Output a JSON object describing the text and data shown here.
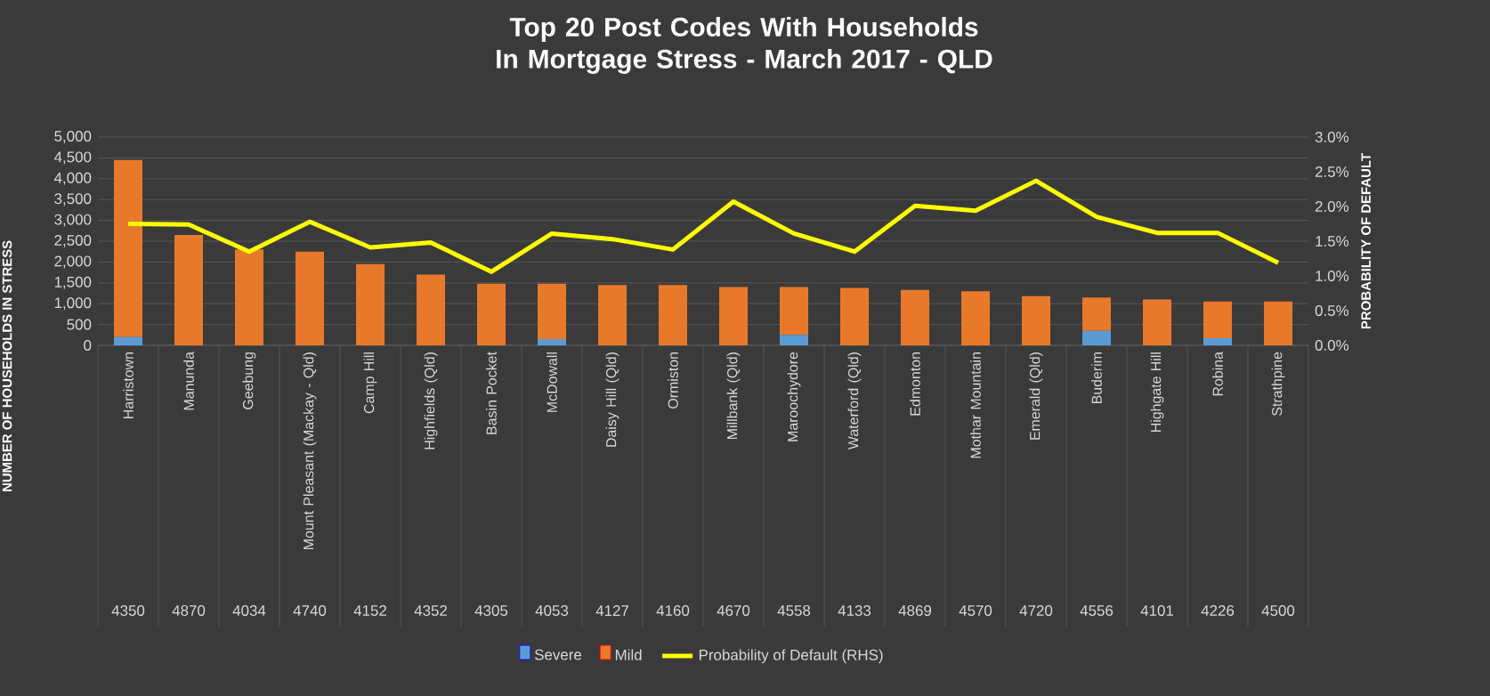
{
  "chart_data": {
    "type": "bar",
    "title": "Top 20 Post Codes With Households In Mortgage Stress - March 2017 - QLD",
    "categories": [
      "Harristown",
      "Manunda",
      "Geebung",
      "Mount Pleasant (Mackay - Qld)",
      "Camp Hill",
      "Highfields (Qld)",
      "Basin Pocket",
      "McDowall",
      "Daisy Hill (Qld)",
      "Ormiston",
      "Millbank (Qld)",
      "Maroochydore",
      "Waterford (Qld)",
      "Edmonton",
      "Mothar Mountain",
      "Emerald (Qld)",
      "Buderim",
      "Highgate Hill",
      "Robina",
      "Strathpine"
    ],
    "annotations": [
      "4350",
      "4870",
      "4034",
      "4740",
      "4152",
      "4352",
      "4305",
      "4053",
      "4127",
      "4160",
      "4670",
      "4558",
      "4133",
      "4869",
      "4570",
      "4720",
      "4556",
      "4101",
      "4226",
      "4500"
    ],
    "stacked": true,
    "series": [
      {
        "name": "Severe",
        "color": "#5b9bd5",
        "values": [
          200,
          0,
          0,
          0,
          0,
          0,
          0,
          150,
          0,
          0,
          0,
          250,
          0,
          0,
          0,
          0,
          350,
          0,
          170,
          0
        ]
      },
      {
        "name": "Mild",
        "color": "#e8792b",
        "values": [
          4250,
          2650,
          2300,
          2250,
          1950,
          1700,
          1480,
          1330,
          1450,
          1450,
          1400,
          1150,
          1380,
          1330,
          1300,
          1180,
          800,
          1100,
          880,
          1050
        ]
      },
      {
        "name": "Probability of Default (RHS)",
        "type": "line",
        "axis": "y2",
        "color": "#ffff00",
        "marker": "none",
        "line_style": "solid",
        "values": [
          1.75,
          1.74,
          1.35,
          1.78,
          1.41,
          1.48,
          1.06,
          1.61,
          1.53,
          1.38,
          2.07,
          1.61,
          1.35,
          2.01,
          1.94,
          2.37,
          1.85,
          1.62,
          1.62,
          1.19
        ]
      }
    ],
    "ylabel": "NUMBER OF HOUSEHOLDS IN STRESS",
    "y2label": "PROBABILITY OF DEFAULT",
    "ylim": [
      0,
      5000
    ],
    "yticks": [
      0,
      500,
      {
        "value": 1000,
        "label": "1,000"
      },
      {
        "value": 1500,
        "label": "1,500"
      },
      {
        "value": 2000,
        "label": "2,000"
      },
      {
        "value": 2500,
        "label": "2,500"
      },
      {
        "value": 3000,
        "label": "3,000"
      },
      {
        "value": 3500,
        "label": "3,500"
      },
      {
        "value": 4000,
        "label": "4,000"
      },
      {
        "value": 4500,
        "label": "4,500"
      },
      {
        "value": 5000,
        "label": "5,000"
      }
    ],
    "y2lim": [
      0,
      3
    ],
    "y2ticks": [
      {
        "value": 0,
        "label": "0.0%"
      },
      {
        "value": 0.5,
        "label": "0.5%"
      },
      {
        "value": 1,
        "label": "1.0%"
      },
      {
        "value": 1.5,
        "label": "1.5%"
      },
      {
        "value": 2,
        "label": "2.0%"
      },
      {
        "value": 2.5,
        "label": "2.5%"
      },
      {
        "value": 3,
        "label": "3.0%"
      }
    ],
    "grid": "y",
    "legend": "bottom"
  }
}
